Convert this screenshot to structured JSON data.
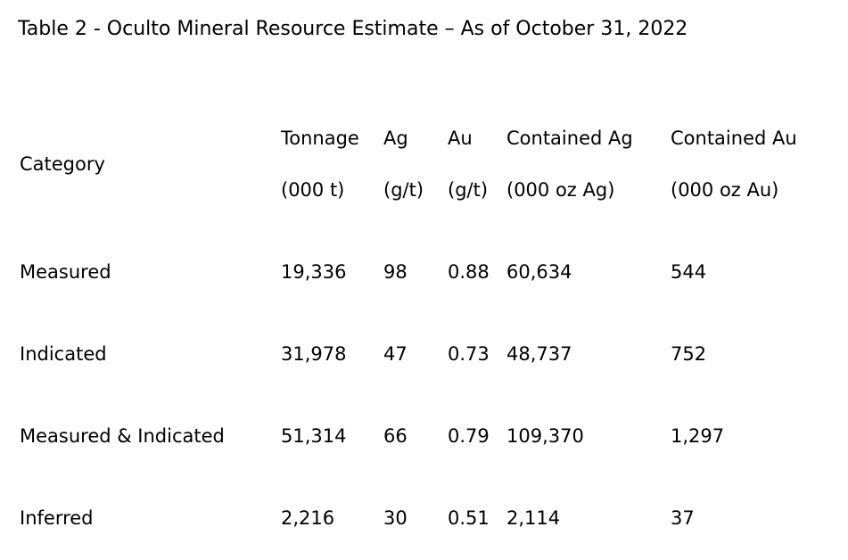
{
  "title": "Table 2 - Oculto Mineral Resource Estimate – As of October 31, 2022",
  "table": {
    "columns": [
      {
        "label": "Category",
        "unit": ""
      },
      {
        "label": "Tonnage",
        "unit": "(000 t)"
      },
      {
        "label": "Ag",
        "unit": "(g/t)"
      },
      {
        "label": "Au",
        "unit": "(g/t)"
      },
      {
        "label": "Contained Ag",
        "unit": "(000 oz Ag)"
      },
      {
        "label": "Contained Au",
        "unit": "(000 oz Au)"
      }
    ],
    "rows": [
      {
        "category": "Measured",
        "values": [
          "19,336",
          "98",
          "0.88",
          "60,634",
          "544"
        ]
      },
      {
        "category": "Indicated",
        "values": [
          "31,978",
          "47",
          "0.73",
          "48,737",
          "752"
        ]
      },
      {
        "category": "Measured & Indicated",
        "values": [
          "51,314",
          "66",
          "0.79",
          "109,370",
          "1,297"
        ]
      },
      {
        "category": "Inferred",
        "values": [
          "2,216",
          "30",
          "0.51",
          "2,114",
          "37"
        ]
      }
    ]
  }
}
